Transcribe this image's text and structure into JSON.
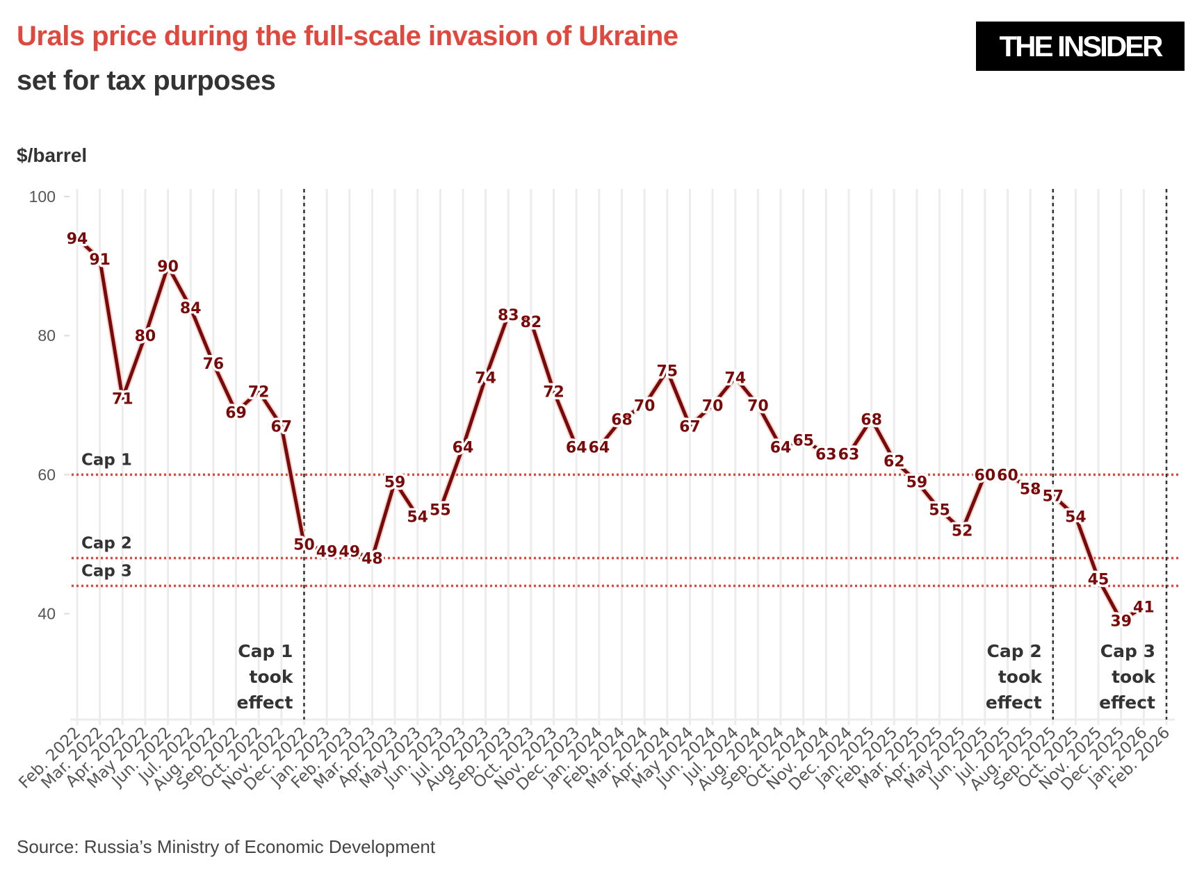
{
  "header": {
    "title": "Urals price during the full-scale invasion of Ukraine",
    "subtitle": "set for tax purposes",
    "logo_text": "THE INSIDER"
  },
  "source": "Source: Russia’s Ministry of Economic Development",
  "colors": {
    "title": "#e0483e",
    "line": "#7a0a0a",
    "cap_lines": "#e0483e",
    "event_lines": "#333333",
    "grid": "#ececec"
  },
  "chart_data": {
    "type": "line",
    "title": "Urals price during the full-scale invasion of Ukraine",
    "subtitle": "set for tax purposes",
    "ylabel": "$/barrel",
    "ylim": [
      25,
      100
    ],
    "yticks": [
      100,
      80,
      60,
      40
    ],
    "grid": "vertical",
    "categories": [
      "Feb. 2022",
      "Mar. 2022",
      "Apr. 2022",
      "May 2022",
      "Jun. 2022",
      "Jul. 2022",
      "Aug. 2022",
      "Sep. 2022",
      "Oct. 2022",
      "Nov. 2022",
      "Dec. 2022",
      "Jan. 2023",
      "Feb. 2023",
      "Mar. 2023",
      "Apr. 2023",
      "May 2023",
      "Jun. 2023",
      "Jul. 2023",
      "Aug. 2023",
      "Sep. 2023",
      "Oct. 2023",
      "Nov. 2023",
      "Dec. 2023",
      "Jan. 2024",
      "Feb. 2024",
      "Mar. 2024",
      "Apr. 2024",
      "May 2024",
      "Jun. 2024",
      "Jul. 2024",
      "Aug. 2024",
      "Sep. 2024",
      "Oct. 2024",
      "Nov. 2024",
      "Dec. 2024",
      "Jan. 2025",
      "Feb. 2025",
      "Mar. 2025",
      "Apr. 2025",
      "May 2025",
      "Jun. 2025",
      "Jul. 2025",
      "Aug. 2025",
      "Sep. 2025",
      "Oct. 2025",
      "Nov. 2025",
      "Dec. 2025",
      "Jan. 2026",
      "Feb. 2026"
    ],
    "values": [
      94,
      91,
      71,
      80,
      90,
      84,
      76,
      69,
      72,
      67,
      50,
      49,
      49,
      48,
      59,
      54,
      55,
      64,
      74,
      83,
      82,
      72,
      64,
      64,
      68,
      70,
      75,
      67,
      70,
      74,
      70,
      64,
      65,
      63,
      63,
      68,
      62,
      59,
      55,
      52,
      60,
      60,
      58,
      57,
      54,
      45,
      39,
      41,
      null
    ],
    "reference_lines": [
      {
        "label": "Cap 1",
        "value": 60
      },
      {
        "label": "Cap 2",
        "value": 48
      },
      {
        "label": "Cap 3",
        "value": 44
      }
    ],
    "events": [
      {
        "category": "Dec. 2022",
        "lines": [
          "Cap 1",
          "took",
          "effect"
        ]
      },
      {
        "category": "Sep. 2025",
        "lines": [
          "Cap 2",
          "took",
          "effect"
        ]
      },
      {
        "category": "Feb. 2026",
        "lines": [
          "Cap 3",
          "took",
          "effect"
        ]
      }
    ]
  }
}
